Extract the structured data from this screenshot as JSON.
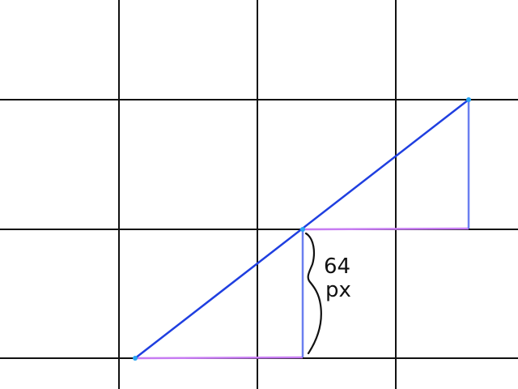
{
  "annotation": {
    "line1": "64",
    "line2": "px"
  },
  "colors": {
    "background": "#ffffff",
    "grid": "#111111",
    "diagonal": "#1f3fe0",
    "vertical": "#6a7ff0",
    "horizontal": "#c77cf2",
    "endpoint": "#27a4f2",
    "brace": "#111111"
  }
}
